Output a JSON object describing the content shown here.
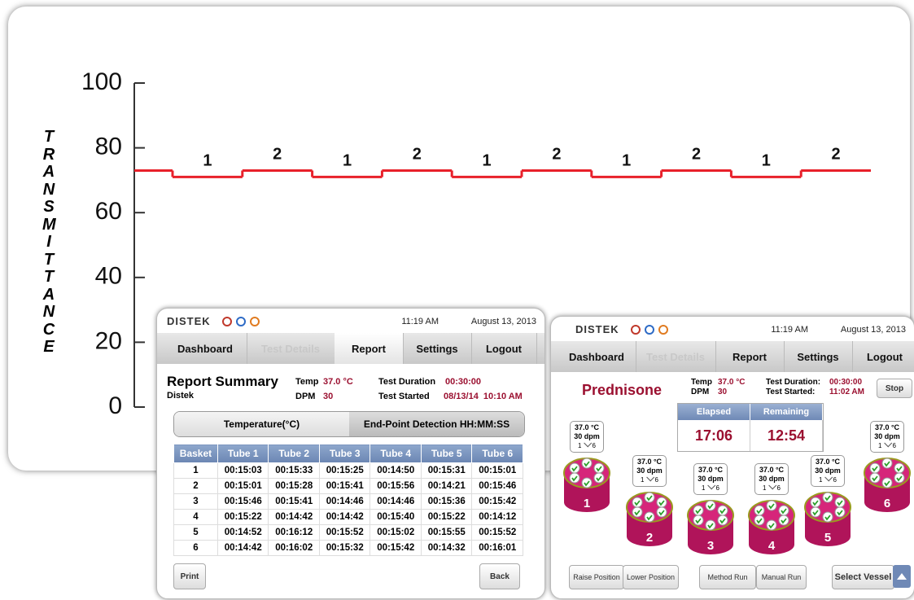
{
  "chart_data": {
    "type": "line",
    "y_label": "TRANSMITTANCE",
    "ylim": [
      0,
      100
    ],
    "yticks": [
      0,
      20,
      40,
      60,
      80,
      100
    ],
    "categories": [
      null,
      "1",
      "2",
      "1",
      "2",
      "1",
      "2",
      "1",
      "2",
      "1",
      "2"
    ],
    "values": [
      73,
      71,
      73,
      71,
      73,
      71,
      73,
      71,
      73,
      71,
      73
    ],
    "color": "#e8202a"
  },
  "report_window": {
    "logo": "DISTEK",
    "time": "11:19 AM",
    "date": "August 13, 2013",
    "tabs": [
      "Dashboard",
      "Test Details",
      "Report",
      "Settings",
      "Logout"
    ],
    "title": "Report Summary",
    "subtitle": "Distek",
    "temp_label": "Temp",
    "temp": "37.0 °C",
    "dpm_label": "DPM",
    "dpm": "30",
    "duration_label": "Test Duration",
    "duration": "00:30:00",
    "started_label": "Test Started",
    "started": "08/13/14  10:10 AM",
    "toggle": [
      "Temperature(°C)",
      "End-Point Detection HH:MM:SS"
    ],
    "table": {
      "header": [
        "Basket",
        "Tube 1",
        "Tube 2",
        "Tube 3",
        "Tube 4",
        "Tube 5",
        "Tube 6"
      ],
      "rows": [
        [
          "1",
          "00:15:03",
          "00:15:33",
          "00:15:25",
          "00:14:50",
          "00:15:31",
          "00:15:01"
        ],
        [
          "2",
          "00:15:01",
          "00:15:28",
          "00:15:41",
          "00:15:56",
          "00:14:21",
          "00:15:46"
        ],
        [
          "3",
          "00:15:46",
          "00:15:41",
          "00:14:46",
          "00:14:46",
          "00:15:36",
          "00:15:42"
        ],
        [
          "4",
          "00:15:22",
          "00:14:42",
          "00:14:42",
          "00:15:40",
          "00:15:22",
          "00:14:12"
        ],
        [
          "5",
          "00:14:52",
          "00:16:12",
          "00:15:52",
          "00:15:02",
          "00:15:55",
          "00:15:52"
        ],
        [
          "6",
          "00:14:42",
          "00:16:02",
          "00:15:32",
          "00:15:42",
          "00:14:32",
          "00:16:01"
        ]
      ]
    },
    "buttons": [
      "Print",
      "Back"
    ]
  },
  "dashboard_window": {
    "logo": "DISTEK",
    "time": "11:19 AM",
    "date": "August 13, 2013",
    "tabs": [
      "Dashboard",
      "Test Details",
      "Report",
      "Settings",
      "Logout"
    ],
    "title": "Prednisone",
    "temp_label": "Temp",
    "temp": "37.0 °C",
    "dpm_label": "DPM",
    "dpm": "30",
    "duration_label": "Test Duration:",
    "duration": "00:30:00",
    "started_label": "Test Started:",
    "started": "11:02 AM",
    "stop": "Stop",
    "elapsed_label": "Elapsed",
    "elapsed": "17:06",
    "remaining_label": "Remaining",
    "remaining": "12:54",
    "vessels": [
      {
        "number": "1",
        "temp": "37.0 °C",
        "dpm": "30 dpm",
        "range": [
          "1",
          "6"
        ]
      },
      {
        "number": "2",
        "temp": "37.0 °C",
        "dpm": "30 dpm",
        "range": [
          "1",
          "6"
        ]
      },
      {
        "number": "3",
        "temp": "37.0 °C",
        "dpm": "30 dpm",
        "range": [
          "1",
          "6"
        ]
      },
      {
        "number": "4",
        "temp": "37.0 °C",
        "dpm": "30 dpm",
        "range": [
          "1",
          "6"
        ]
      },
      {
        "number": "5",
        "temp": "37.0 °C",
        "dpm": "30 dpm",
        "range": [
          "1",
          "6"
        ]
      },
      {
        "number": "6",
        "temp": "37.0 °C",
        "dpm": "30 dpm",
        "range": [
          "1",
          "6"
        ]
      }
    ],
    "buttons": [
      "Raise Position",
      "Lower Position",
      "Method Run",
      "Manual Run",
      "Select Vessel"
    ]
  }
}
